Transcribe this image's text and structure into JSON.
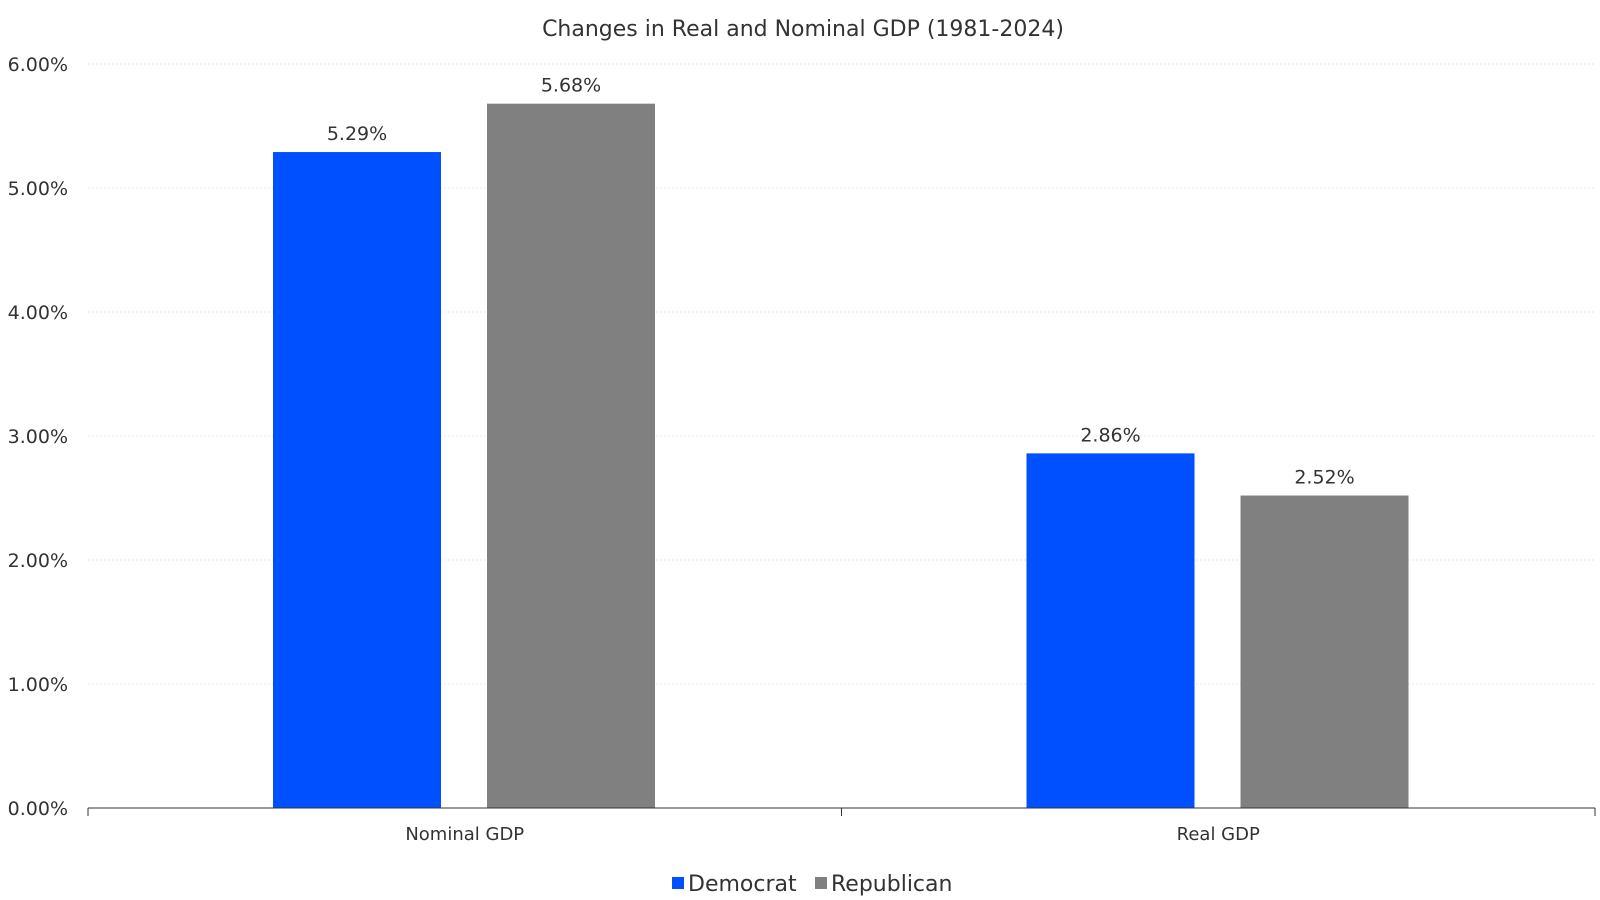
{
  "chart_data": {
    "type": "bar",
    "title": "Changes in Real and Nominal GDP (1981-2024)",
    "categories": [
      "Nominal GDP",
      "Real GDP"
    ],
    "series": [
      {
        "name": "Democrat",
        "values": [
          5.29,
          2.86
        ],
        "labels": [
          "5.29%",
          "2.86%"
        ],
        "color": "#0050ff"
      },
      {
        "name": "Republican",
        "values": [
          5.68,
          2.52
        ],
        "labels": [
          "5.68%",
          "2.52%"
        ],
        "color": "#808080"
      }
    ],
    "ylim": [
      0,
      6
    ],
    "yticks": [
      0,
      1,
      2,
      3,
      4,
      5,
      6
    ],
    "ytick_labels": [
      "0.00%",
      "1.00%",
      "2.00%",
      "3.00%",
      "4.00%",
      "5.00%",
      "6.00%"
    ],
    "xlabel": "",
    "ylabel": "",
    "grid": true,
    "legend_position": "bottom-center"
  }
}
